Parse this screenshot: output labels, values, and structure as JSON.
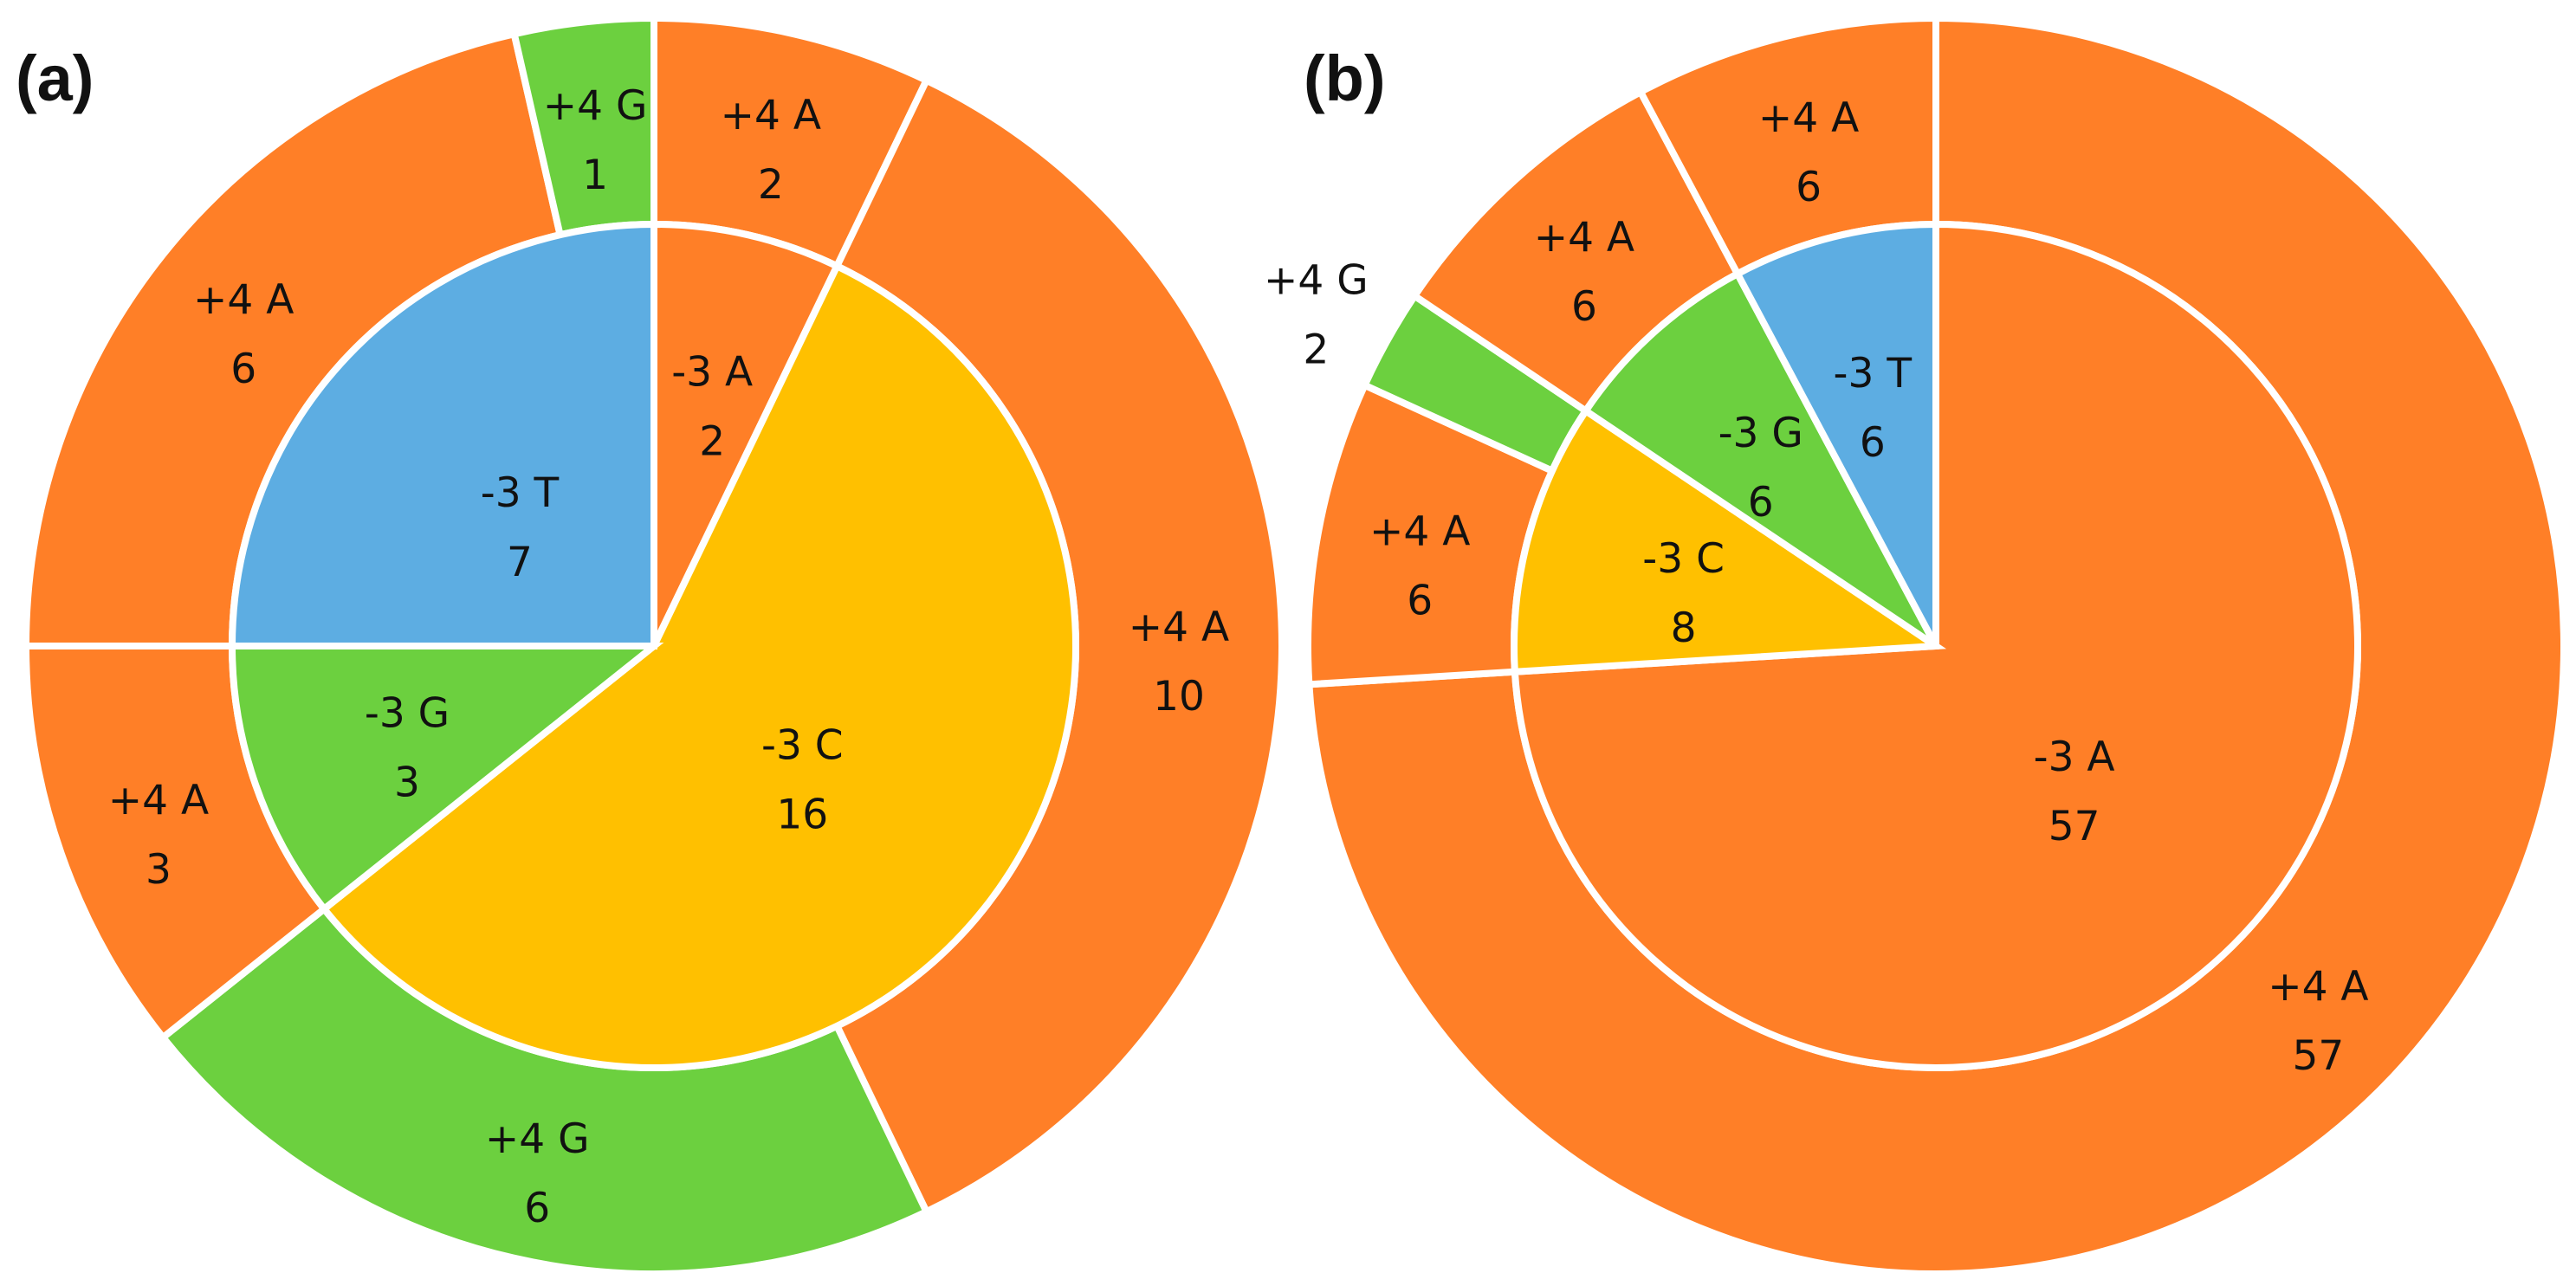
{
  "colors": {
    "A": "#FF7F27",
    "C": "#FFC000",
    "G": "#6CD03F",
    "T": "#5DADE2"
  },
  "chart_data": [
    {
      "type": "pie",
      "variant": "nested-donut",
      "panel": "(a)",
      "inner_ring": [
        {
          "label": "-3 A",
          "value": 2,
          "base": "A"
        },
        {
          "label": "-3 C",
          "value": 16,
          "base": "C"
        },
        {
          "label": "-3 G",
          "value": 3,
          "base": "G"
        },
        {
          "label": "-3 T",
          "value": 7,
          "base": "T"
        }
      ],
      "outer_ring": [
        {
          "label": "+4 A",
          "value": 2,
          "base": "A"
        },
        {
          "label": "+4 A",
          "value": 10,
          "base": "A"
        },
        {
          "label": "+4 G",
          "value": 6,
          "base": "G"
        },
        {
          "label": "+4 A",
          "value": 3,
          "base": "A"
        },
        {
          "label": "+4 A",
          "value": 6,
          "base": "A"
        },
        {
          "label": "+4 G",
          "value": 1,
          "base": "G"
        }
      ]
    },
    {
      "type": "pie",
      "variant": "nested-donut",
      "panel": "(b)",
      "inner_ring": [
        {
          "label": "-3 A",
          "value": 57,
          "base": "A"
        },
        {
          "label": "-3 C",
          "value": 8,
          "base": "C"
        },
        {
          "label": "-3 G",
          "value": 6,
          "base": "G"
        },
        {
          "label": "-3 T",
          "value": 6,
          "base": "T"
        }
      ],
      "outer_ring": [
        {
          "label": "+4 A",
          "value": 57,
          "base": "A"
        },
        {
          "label": "+4 A",
          "value": 6,
          "base": "A"
        },
        {
          "label": "+4 G",
          "value": 2,
          "base": "G"
        },
        {
          "label": "+4 A",
          "value": 6,
          "base": "A"
        },
        {
          "label": "+4 A",
          "value": 6,
          "base": "A"
        }
      ]
    }
  ]
}
